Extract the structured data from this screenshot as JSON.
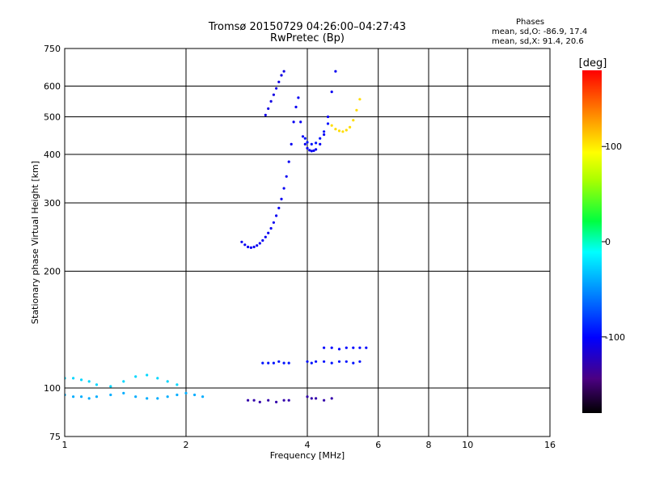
{
  "header": {
    "title_line1": "Tromsø 20150729 04:26:00–04:27:43",
    "title_line2": "RwPretec (Bp)",
    "stats_title": "Phases",
    "stats_o": "mean, sd,O: -86.9, 17.4",
    "stats_x": "mean, sd,X:  91.4, 20.6"
  },
  "chart_data": {
    "type": "scatter",
    "xlabel": "Frequency [MHz]",
    "ylabel": "Stationary phase Virtual Height [km]",
    "xscale": "log",
    "yscale": "log",
    "xlim": [
      1,
      16
    ],
    "ylim": [
      75,
      750
    ],
    "xticks": [
      1,
      2,
      4,
      6,
      8,
      10,
      16
    ],
    "xtick_labels": [
      "1",
      "2",
      "4",
      "6",
      "8",
      "10",
      "16"
    ],
    "yticks": [
      75,
      100,
      200,
      300,
      400,
      500,
      600,
      750
    ],
    "ytick_labels": [
      "75",
      "100",
      "200",
      "300",
      "400",
      "500",
      "600",
      "750"
    ],
    "grid": true,
    "colorbar": {
      "label": "[deg]",
      "range": [
        -180,
        180
      ],
      "ticks": [
        100,
        0,
        -100
      ],
      "tick_labels": [
        "100",
        "0",
        "-100"
      ]
    },
    "traces": [
      {
        "f": [
          2.75,
          2.8,
          2.85,
          2.9,
          2.95,
          3.0,
          3.05,
          3.1,
          3.15,
          3.2,
          3.25,
          3.3,
          3.35,
          3.4,
          3.45,
          3.5,
          3.55,
          3.6,
          3.65,
          3.7,
          3.75,
          3.8
        ],
        "h": [
          238,
          234,
          231,
          230,
          231,
          233,
          236,
          240,
          245,
          251,
          258,
          267,
          278,
          291,
          307,
          327,
          351,
          383,
          425,
          485,
          530,
          560
        ],
        "phase": -105
      },
      {
        "f": [
          3.15,
          3.2,
          3.25,
          3.3,
          3.35,
          3.4,
          3.45,
          3.5
        ],
        "h": [
          505,
          525,
          548,
          570,
          592,
          615,
          640,
          655
        ],
        "phase": -110
      },
      {
        "f": [
          3.85,
          3.9,
          3.95,
          4.0,
          4.05,
          4.1,
          4.15,
          4.2,
          4.3,
          4.4,
          4.5,
          4.6,
          4.7
        ],
        "h": [
          485,
          445,
          425,
          415,
          410,
          408,
          409,
          412,
          425,
          450,
          500,
          580,
          655
        ],
        "phase": -105
      },
      {
        "f": [
          3.95,
          4.0,
          4.1,
          4.2,
          4.3,
          4.4,
          4.5
        ],
        "h": [
          440,
          430,
          425,
          428,
          440,
          458,
          480
        ],
        "phase": -95
      },
      {
        "f": [
          4.6,
          4.7,
          4.8,
          4.9,
          5.0,
          5.1,
          5.2,
          5.3,
          5.4
        ],
        "h": [
          475,
          465,
          460,
          458,
          462,
          470,
          490,
          520,
          555
        ],
        "phase": 105
      },
      {
        "f": [
          1.0,
          1.05,
          1.1,
          1.15,
          1.2,
          1.3,
          1.4,
          1.5,
          1.6,
          1.7,
          1.8,
          1.9,
          2.0,
          2.1,
          2.2
        ],
        "h": [
          96,
          95,
          95,
          94,
          95,
          96,
          97,
          95,
          94,
          94,
          95,
          96,
          97,
          96,
          95
        ],
        "phase": -40
      },
      {
        "f": [
          1.0,
          1.05,
          1.1,
          1.15,
          1.2,
          1.3,
          1.4,
          1.5,
          1.6,
          1.7,
          1.8,
          1.9
        ],
        "h": [
          106,
          106,
          105,
          104,
          102,
          101,
          104,
          107,
          108,
          106,
          104,
          102
        ],
        "phase": -25
      },
      {
        "f": [
          3.1,
          3.2,
          3.3,
          3.4,
          3.5,
          3.6,
          4.0,
          4.1,
          4.2,
          4.4,
          4.6,
          4.8,
          5.0,
          5.2,
          5.4
        ],
        "h": [
          116,
          116,
          116,
          117,
          116,
          116,
          117,
          116,
          117,
          117,
          116,
          117,
          117,
          116,
          117
        ],
        "phase": -95
      },
      {
        "f": [
          4.4,
          4.6,
          4.8,
          5.0,
          5.2,
          5.4,
          5.6
        ],
        "h": [
          127,
          127,
          126,
          127,
          127,
          127,
          127
        ],
        "phase": -100
      },
      {
        "f": [
          2.85,
          2.95,
          3.05,
          3.2,
          3.35,
          3.5,
          3.6,
          4.0,
          4.1,
          4.2,
          4.4,
          4.6
        ],
        "h": [
          93,
          93,
          92,
          93,
          92,
          93,
          93,
          95,
          94,
          94,
          93,
          94
        ],
        "phase": -130
      }
    ]
  }
}
